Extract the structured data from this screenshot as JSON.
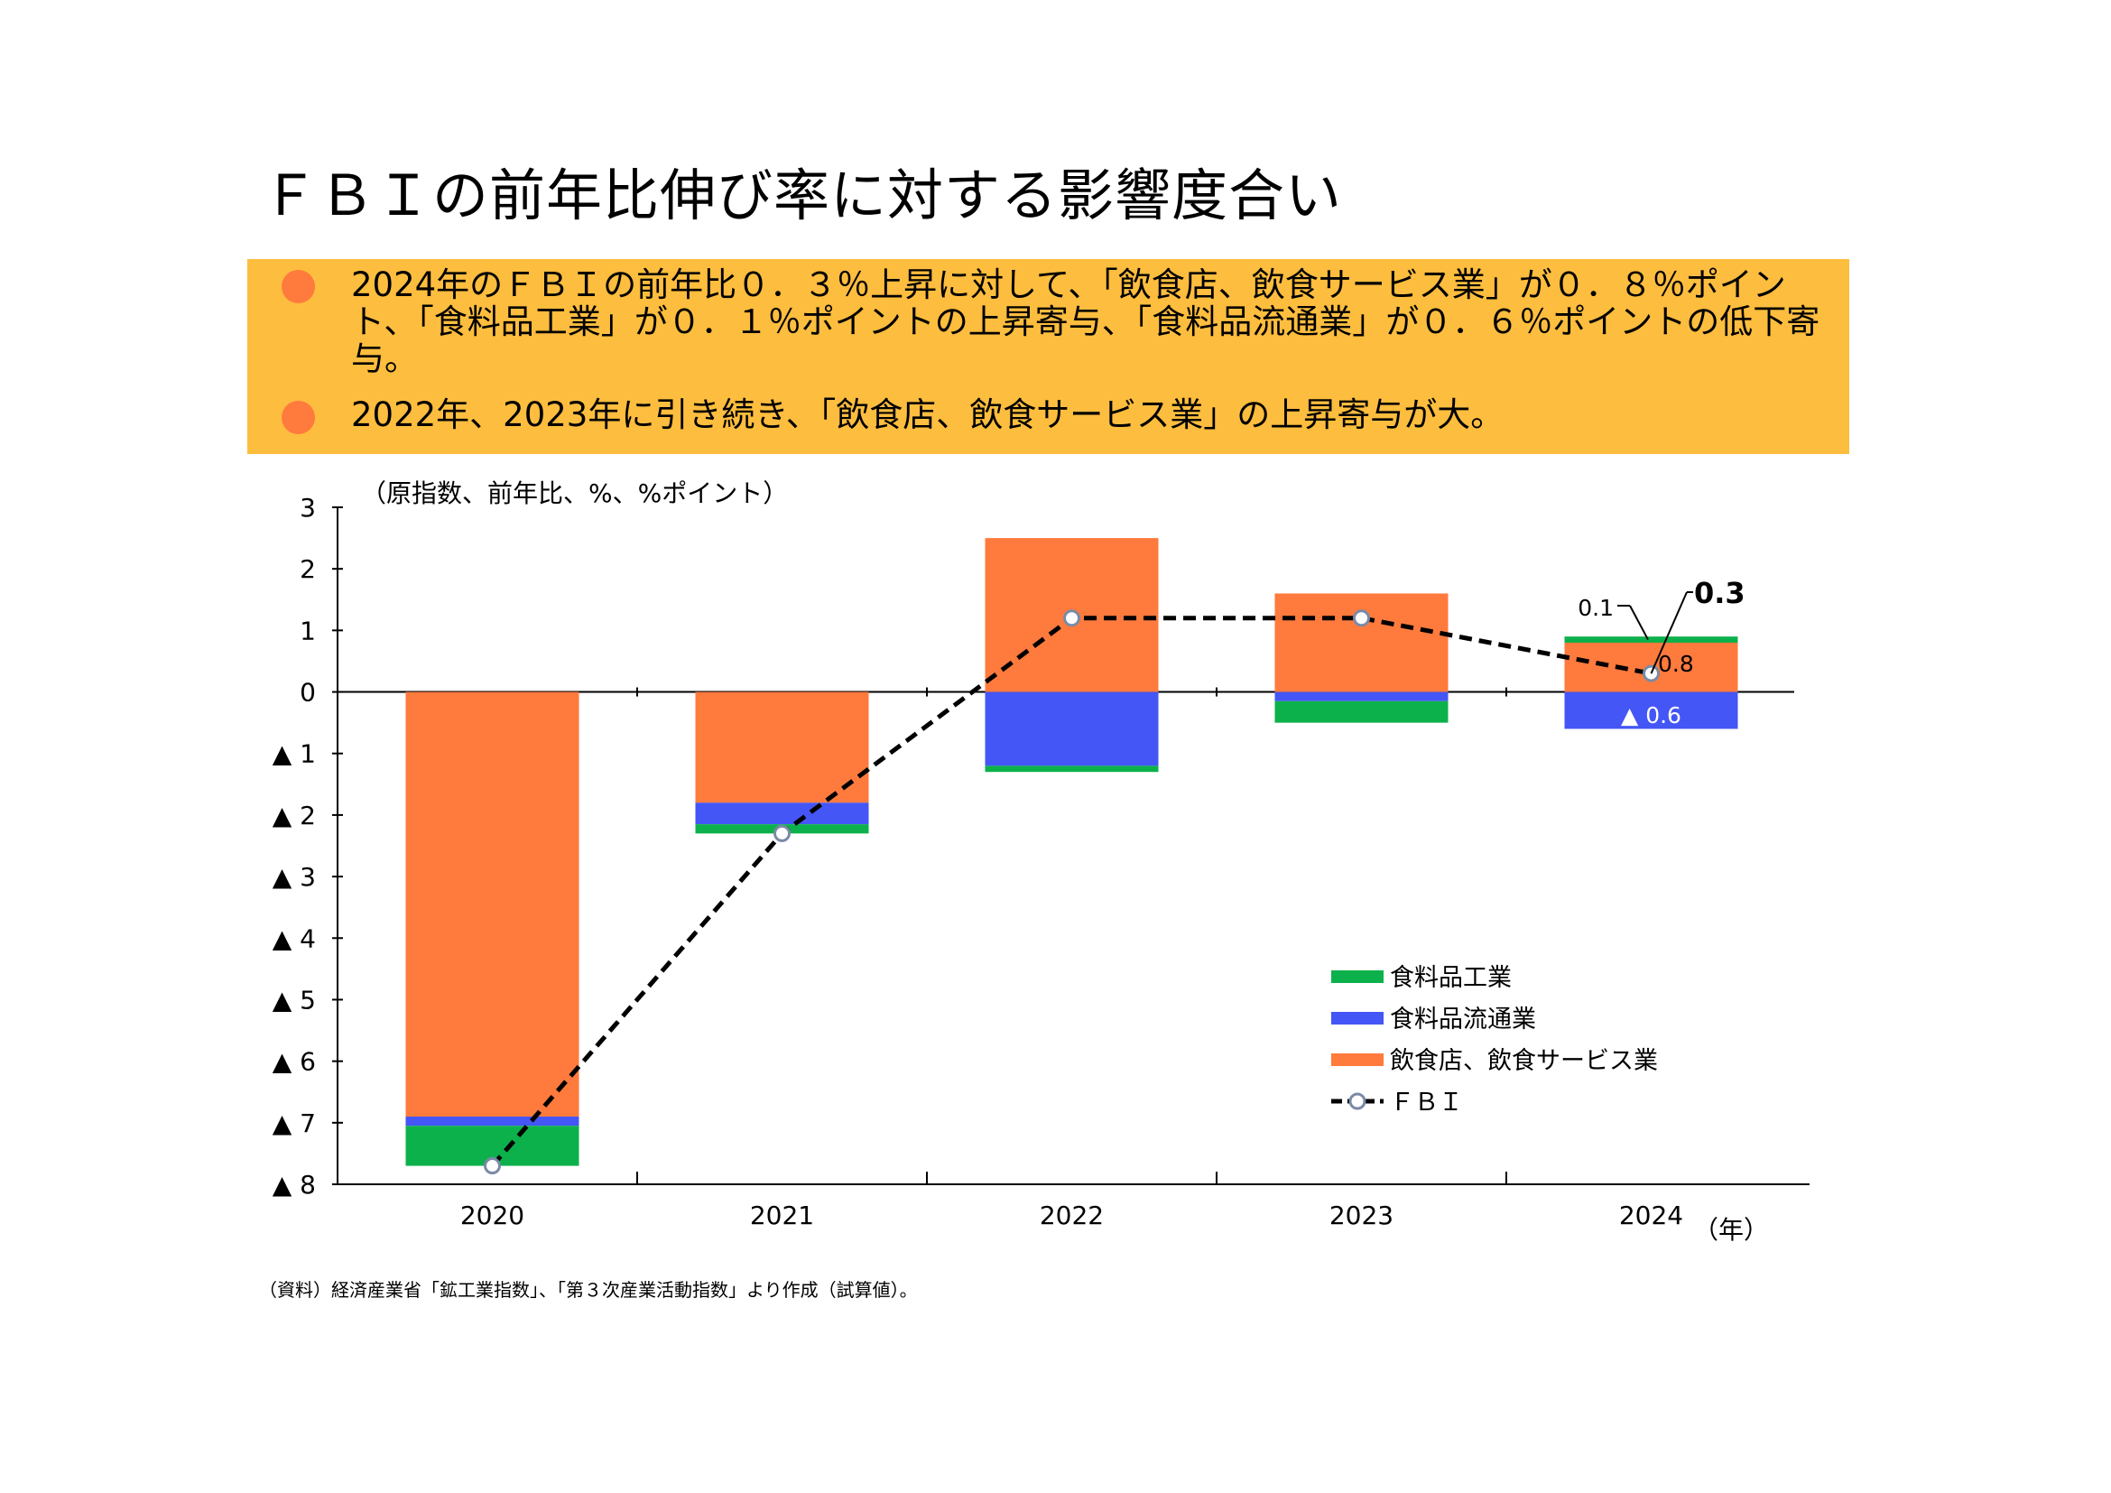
{
  "title": "ＦＢＩの前年比伸び率に対する影響度合い",
  "summary": [
    "2024年のＦＢＩの前年比０．３％上昇に対して、「飲食店、飲食サービス業」が０．８％ポイント、「食料品工業」が０．１％ポイントの上昇寄与、「食料品流通業」が０．６％ポイントの低下寄与。",
    "2022年、2023年に引き続き、「飲食店、飲食サービス業」の上昇寄与が大。"
  ],
  "colors": {
    "summary_bg": "#FDBD3E",
    "bullet": "#FF7A3D",
    "restaurants": "#FF7A3D",
    "distribution": "#4456F5",
    "manufacturing": "#0DB14B",
    "fbi_line": "#000000",
    "marker_fill": "#FFFFFF",
    "marker_stroke": "#7A8AA6"
  },
  "chart_data": {
    "type": "bar",
    "stacked": true,
    "unit_note": "（原指数、前年比、%、%ポイント）",
    "x_unit": "（年）",
    "categories": [
      "2020",
      "2021",
      "2022",
      "2023",
      "2024"
    ],
    "ylim": [
      -8,
      3
    ],
    "y_ticks": [
      3,
      2,
      1,
      0,
      -1,
      -2,
      -3,
      -4,
      -5,
      -6,
      -7,
      -8
    ],
    "y_tick_labels": [
      "3",
      "2",
      "1",
      "0",
      "▲ 1",
      "▲ 2",
      "▲ 3",
      "▲ 4",
      "▲ 5",
      "▲ 6",
      "▲ 7",
      "▲ 8"
    ],
    "series": [
      {
        "name": "食料品工業",
        "key": "manufacturing",
        "values": [
          -0.65,
          -0.15,
          -0.1,
          -0.35,
          0.1
        ]
      },
      {
        "name": "食料品流通業",
        "key": "distribution",
        "values": [
          -0.15,
          -0.35,
          -1.2,
          -0.15,
          -0.6
        ]
      },
      {
        "name": "飲食店、飲食サービス業",
        "key": "restaurants",
        "values": [
          -6.9,
          -1.8,
          2.5,
          1.6,
          0.8
        ]
      }
    ],
    "line": {
      "name": "ＦＢＩ",
      "values": [
        -7.7,
        -2.3,
        1.2,
        1.2,
        0.3
      ]
    },
    "legend": {
      "position": "bottom-right",
      "order": [
        "manufacturing",
        "distribution",
        "restaurants",
        "fbi"
      ],
      "labels": [
        "食料品工業",
        "食料品流通業",
        "飲食店、飲食サービス業",
        "ＦＢＩ"
      ]
    },
    "annotations": [
      {
        "text": "0.3",
        "category": "2024",
        "ref": "fbi"
      },
      {
        "text": "0.1",
        "category": "2024",
        "ref": "manufacturing"
      },
      {
        "text": "0.8",
        "category": "2024",
        "ref": "restaurants"
      },
      {
        "text": "▲ 0.6",
        "category": "2024",
        "ref": "distribution"
      }
    ]
  },
  "source": "（資料）経済産業省「鉱工業指数」、「第３次産業活動指数」より作成（試算値）。"
}
